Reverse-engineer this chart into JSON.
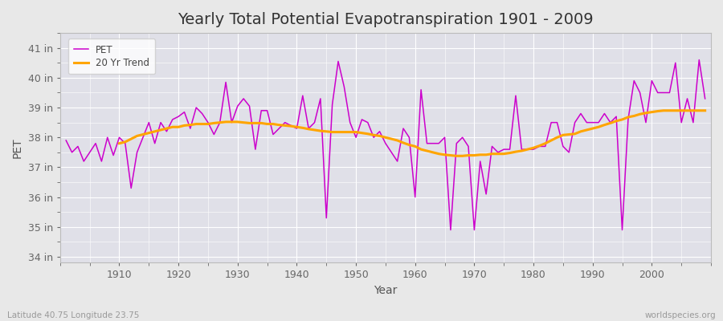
{
  "title": "Yearly Total Potential Evapotranspiration 1901 - 2009",
  "xlabel": "Year",
  "ylabel": "PET",
  "subtitle_left": "Latitude 40.75 Longitude 23.75",
  "subtitle_right": "worldspecies.org",
  "years": [
    1901,
    1902,
    1903,
    1904,
    1905,
    1906,
    1907,
    1908,
    1909,
    1910,
    1911,
    1912,
    1913,
    1914,
    1915,
    1916,
    1917,
    1918,
    1919,
    1920,
    1921,
    1922,
    1923,
    1924,
    1925,
    1926,
    1927,
    1928,
    1929,
    1930,
    1931,
    1932,
    1933,
    1934,
    1935,
    1936,
    1937,
    1938,
    1939,
    1940,
    1941,
    1942,
    1943,
    1944,
    1945,
    1946,
    1947,
    1948,
    1949,
    1950,
    1951,
    1952,
    1953,
    1954,
    1955,
    1956,
    1957,
    1958,
    1959,
    1960,
    1961,
    1962,
    1963,
    1964,
    1965,
    1966,
    1967,
    1968,
    1969,
    1970,
    1971,
    1972,
    1973,
    1974,
    1975,
    1976,
    1977,
    1978,
    1979,
    1980,
    1981,
    1982,
    1983,
    1984,
    1985,
    1986,
    1987,
    1988,
    1989,
    1990,
    1991,
    1992,
    1993,
    1994,
    1995,
    1996,
    1997,
    1998,
    1999,
    2000,
    2001,
    2002,
    2003,
    2004,
    2005,
    2006,
    2007,
    2008,
    2009
  ],
  "pet": [
    37.9,
    37.5,
    37.7,
    37.2,
    37.5,
    37.8,
    37.2,
    38.0,
    37.4,
    38.0,
    37.8,
    36.3,
    37.5,
    38.0,
    38.5,
    37.8,
    38.5,
    38.2,
    38.6,
    38.7,
    38.85,
    38.3,
    39.0,
    38.8,
    38.5,
    38.1,
    38.5,
    39.85,
    38.5,
    39.05,
    39.3,
    39.05,
    37.6,
    38.9,
    38.9,
    38.1,
    38.3,
    38.5,
    38.4,
    38.3,
    39.4,
    38.3,
    38.5,
    39.3,
    35.3,
    39.1,
    40.55,
    39.7,
    38.5,
    38.0,
    38.6,
    38.5,
    38.0,
    38.2,
    37.8,
    37.5,
    37.2,
    38.3,
    38.0,
    36.0,
    39.6,
    37.8,
    37.8,
    37.8,
    38.0,
    34.9,
    37.8,
    38.0,
    37.7,
    34.9,
    37.2,
    36.1,
    37.7,
    37.5,
    37.6,
    37.6,
    39.4,
    37.6,
    37.6,
    37.6,
    37.7,
    37.7,
    38.5,
    38.5,
    37.7,
    37.5,
    38.5,
    38.8,
    38.5,
    38.5,
    38.5,
    38.8,
    38.5,
    38.7,
    34.9,
    38.6,
    39.9,
    39.5,
    38.5,
    39.9,
    39.5,
    39.5,
    39.5,
    40.5,
    38.5,
    39.3,
    38.5,
    40.6,
    39.3
  ],
  "trend_years": [
    1910,
    1911,
    1912,
    1913,
    1914,
    1915,
    1916,
    1917,
    1918,
    1919,
    1920,
    1921,
    1922,
    1923,
    1924,
    1925,
    1926,
    1927,
    1928,
    1929,
    1930,
    1931,
    1932,
    1933,
    1934,
    1935,
    1936,
    1937,
    1938,
    1939,
    1940,
    1941,
    1942,
    1943,
    1944,
    1945,
    1946,
    1947,
    1948,
    1949,
    1950,
    1951,
    1952,
    1953,
    1954,
    1955,
    1956,
    1957,
    1958,
    1959,
    1960,
    1961,
    1962,
    1963,
    1964,
    1965,
    1966,
    1967,
    1968,
    1969,
    1970,
    1971,
    1972,
    1973,
    1974,
    1975,
    1976,
    1977,
    1978,
    1979,
    1980,
    1981,
    1982,
    1983,
    1984,
    1985,
    1986,
    1987,
    1988,
    1989,
    1990,
    1991,
    1992,
    1993,
    1994,
    1995,
    1996,
    1997,
    1998,
    1999,
    2000,
    2001,
    2002,
    2003,
    2004,
    2005,
    2006,
    2007,
    2008,
    2009
  ],
  "trend": [
    37.8,
    37.85,
    37.95,
    38.05,
    38.1,
    38.15,
    38.2,
    38.25,
    38.3,
    38.35,
    38.35,
    38.4,
    38.42,
    38.45,
    38.45,
    38.45,
    38.48,
    38.5,
    38.52,
    38.52,
    38.52,
    38.5,
    38.48,
    38.48,
    38.48,
    38.45,
    38.45,
    38.42,
    38.4,
    38.38,
    38.35,
    38.32,
    38.28,
    38.25,
    38.22,
    38.2,
    38.18,
    38.18,
    38.18,
    38.18,
    38.18,
    38.15,
    38.12,
    38.08,
    38.05,
    38.0,
    37.95,
    37.9,
    37.82,
    37.75,
    37.7,
    37.6,
    37.55,
    37.5,
    37.45,
    37.42,
    37.4,
    37.38,
    37.38,
    37.4,
    37.4,
    37.42,
    37.42,
    37.45,
    37.45,
    37.45,
    37.48,
    37.52,
    37.55,
    37.6,
    37.65,
    37.72,
    37.8,
    37.9,
    38.0,
    38.08,
    38.1,
    38.12,
    38.2,
    38.25,
    38.3,
    38.35,
    38.42,
    38.48,
    38.55,
    38.6,
    38.68,
    38.72,
    38.78,
    38.82,
    38.85,
    38.88,
    38.9,
    38.9,
    38.9,
    38.9,
    38.9,
    38.9,
    38.9,
    38.9
  ],
  "pet_color": "#CC00CC",
  "trend_color": "#FFA500",
  "bg_color": "#E8E8E8",
  "plot_bg_color": "#E0E0E8",
  "grid_color": "#FFFFFF",
  "grid_minor_color": "#F0F0F0",
  "ylim": [
    33.8,
    41.5
  ],
  "yticks": [
    34,
    35,
    36,
    37,
    38,
    39,
    40,
    41
  ],
  "ytick_labels": [
    "34 in",
    "35 in",
    "36 in",
    "37 in",
    "38 in",
    "39 in",
    "40 in",
    "41 in"
  ],
  "xticks": [
    1910,
    1920,
    1930,
    1940,
    1950,
    1960,
    1970,
    1980,
    1990,
    2000
  ],
  "xlim": [
    1900,
    2010
  ],
  "title_fontsize": 14,
  "axis_label_fontsize": 10,
  "tick_fontsize": 9
}
